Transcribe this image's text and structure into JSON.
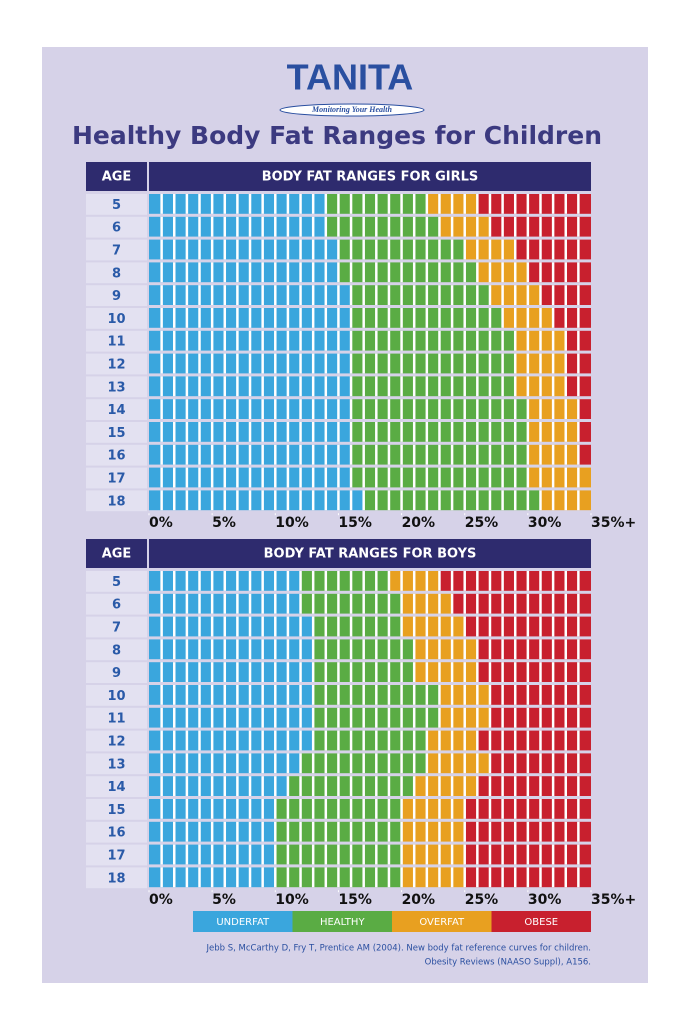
{
  "logo": "TANITA",
  "tagline": "Monitoring Your Health",
  "title": "Healthy Body Fat Ranges for Children",
  "legend": [
    {
      "name": "UNDERFAT",
      "color": "#3aa6dd"
    },
    {
      "name": "HEALTHY",
      "color": "#5aac44"
    },
    {
      "name": "OVERFAT",
      "color": "#e8a020"
    },
    {
      "name": "OBESE",
      "color": "#c8202e"
    }
  ],
  "chart_data": [
    {
      "type": "stacked-bar",
      "orientation": "horizontal",
      "category_header": "AGE",
      "title": "BODY FAT RANGES FOR GIRLS",
      "categories": [
        "5",
        "6",
        "7",
        "8",
        "9",
        "10",
        "11",
        "12",
        "13",
        "14",
        "15",
        "16",
        "17",
        "18"
      ],
      "xlim": [
        0,
        35
      ],
      "xticks": [
        {
          "value": 0,
          "label": "0%"
        },
        {
          "value": 5,
          "label": "5%"
        },
        {
          "value": 10,
          "label": "10%"
        },
        {
          "value": 15,
          "label": "15%"
        },
        {
          "value": 20,
          "label": "20%"
        },
        {
          "value": 25,
          "label": "25%"
        },
        {
          "value": 30,
          "label": "30%"
        },
        {
          "value": 35,
          "label": "35%+"
        }
      ],
      "series": [
        {
          "color": "#3aa6dd",
          "values": [
            14,
            14,
            15,
            15,
            16,
            16,
            16,
            16,
            16,
            16,
            16,
            16,
            16,
            17
          ]
        },
        {
          "color": "#5aac44",
          "values": [
            8,
            9,
            10,
            11,
            11,
            12,
            13,
            13,
            13,
            14,
            14,
            14,
            14,
            14
          ]
        },
        {
          "color": "#e8a020",
          "values": [
            4,
            4,
            4,
            4,
            4,
            4,
            4,
            4,
            4,
            4,
            4,
            4,
            5,
            4
          ]
        },
        {
          "color": "#c8202e",
          "values": [
            9,
            8,
            6,
            5,
            4,
            3,
            2,
            2,
            2,
            1,
            1,
            1,
            0,
            0
          ]
        }
      ]
    },
    {
      "type": "stacked-bar",
      "orientation": "horizontal",
      "category_header": "AGE",
      "title": "BODY FAT RANGES FOR BOYS",
      "categories": [
        "5",
        "6",
        "7",
        "8",
        "9",
        "10",
        "11",
        "12",
        "13",
        "14",
        "15",
        "16",
        "17",
        "18"
      ],
      "xlim": [
        0,
        35
      ],
      "xticks": [
        {
          "value": 0,
          "label": "0%"
        },
        {
          "value": 5,
          "label": "5%"
        },
        {
          "value": 10,
          "label": "10%"
        },
        {
          "value": 15,
          "label": "15%"
        },
        {
          "value": 20,
          "label": "20%"
        },
        {
          "value": 25,
          "label": "25%"
        },
        {
          "value": 30,
          "label": "30%"
        },
        {
          "value": 35,
          "label": "35%+"
        }
      ],
      "series": [
        {
          "color": "#3aa6dd",
          "values": [
            12,
            12,
            13,
            13,
            13,
            13,
            13,
            13,
            12,
            11,
            10,
            10,
            10,
            10
          ]
        },
        {
          "color": "#5aac44",
          "values": [
            7,
            8,
            7,
            8,
            8,
            10,
            10,
            9,
            10,
            10,
            10,
            10,
            10,
            10
          ]
        },
        {
          "color": "#e8a020",
          "values": [
            4,
            4,
            5,
            5,
            5,
            4,
            4,
            4,
            5,
            5,
            5,
            5,
            5,
            5
          ]
        },
        {
          "color": "#c8202e",
          "values": [
            12,
            11,
            10,
            9,
            9,
            8,
            8,
            9,
            8,
            9,
            10,
            10,
            10,
            10
          ]
        }
      ]
    }
  ],
  "citation": [
    "Jebb S, McCarthy D, Fry T, Prentice AM (2004).  New body fat reference curves for children.",
    "Obesity Reviews (NAASO Suppl), A156."
  ]
}
